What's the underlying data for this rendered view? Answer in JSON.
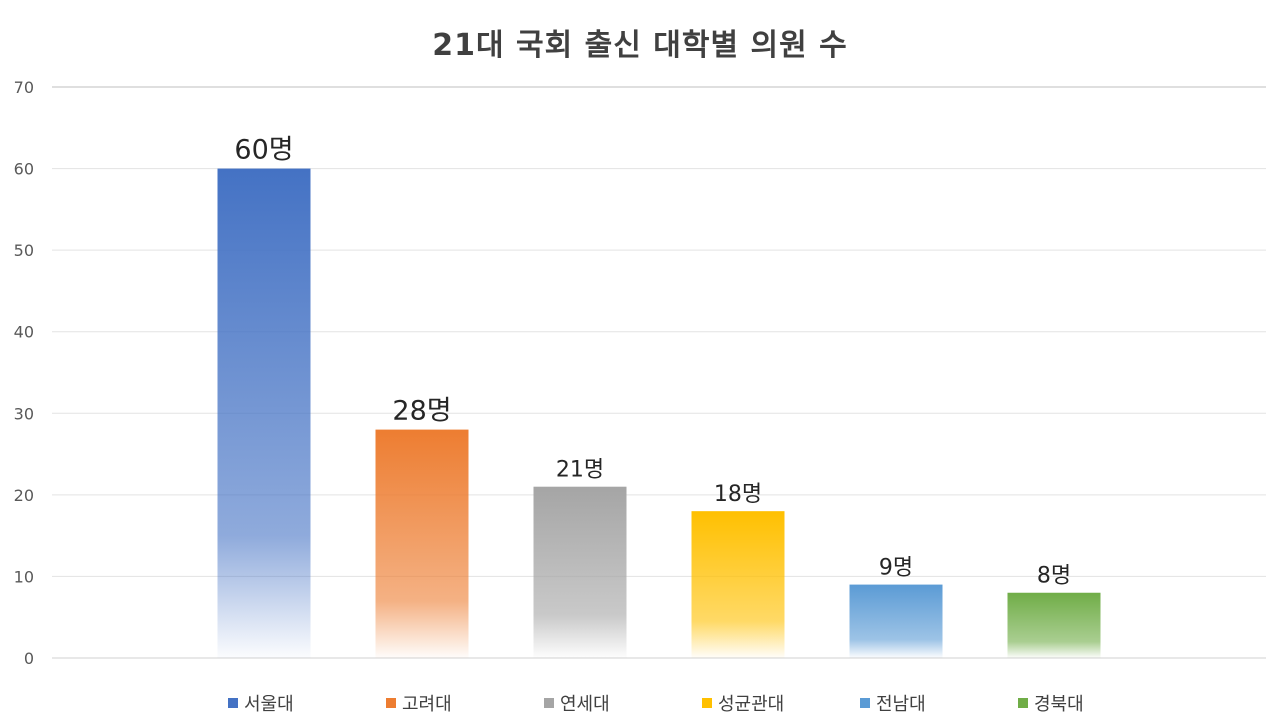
{
  "chart_data": {
    "type": "bar",
    "title": "21대 국회 출신 대학별 의원 수",
    "categories": [
      "서울대",
      "고려대",
      "연세대",
      "성균관대",
      "전남대",
      "경북대"
    ],
    "values": [
      60,
      28,
      21,
      18,
      9,
      8
    ],
    "data_labels": [
      "60명",
      "28명",
      "21명",
      "18명",
      "9명",
      "8명"
    ],
    "colors": [
      "#4472C4",
      "#ED7D31",
      "#A5A5A5",
      "#FFC000",
      "#5B9BD5",
      "#70AD47"
    ],
    "ylim": [
      0,
      70
    ],
    "yticks": [
      0,
      10,
      20,
      30,
      40,
      50,
      60,
      70
    ],
    "grid": true,
    "legend": "bottom",
    "xlabel": "",
    "ylabel": ""
  }
}
